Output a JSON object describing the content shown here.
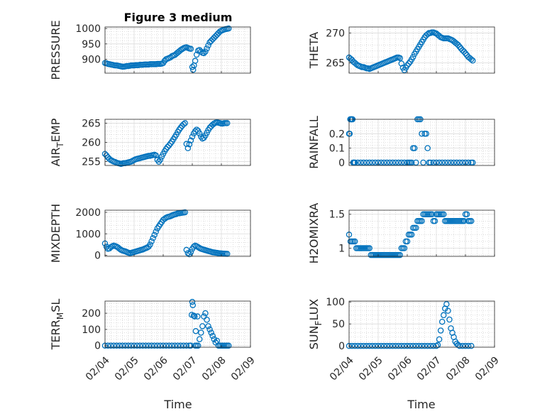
{
  "figure": {
    "title": "Figure 3 medium",
    "xlabel": "Time",
    "x_ticks": [
      "02/04",
      "02/05",
      "02/06",
      "02/07",
      "02/08",
      "02/09"
    ],
    "marker_color": "#0072BD"
  },
  "chart_data": [
    {
      "type": "scatter",
      "name": "pressure",
      "ylabel": "PRESSURE",
      "ylim": [
        855,
        1005
      ],
      "yticks": [
        900,
        950,
        1000
      ],
      "yticklabels": [
        "900",
        "950",
        "1000"
      ],
      "xlim": [
        0,
        5
      ],
      "x": [
        0.0,
        0.05,
        0.1,
        0.15,
        0.2,
        0.25,
        0.3,
        0.35,
        0.4,
        0.45,
        0.5,
        0.55,
        0.6,
        0.65,
        0.7,
        0.75,
        0.8,
        0.85,
        0.9,
        0.95,
        1.0,
        1.05,
        1.1,
        1.15,
        1.2,
        1.25,
        1.3,
        1.35,
        1.4,
        1.45,
        1.5,
        1.55,
        1.6,
        1.65,
        1.7,
        1.75,
        1.8,
        1.85,
        1.9,
        1.95,
        2.0,
        2.05,
        2.1,
        2.15,
        2.2,
        2.25,
        2.3,
        2.35,
        2.4,
        2.45,
        2.5,
        2.55,
        2.6,
        2.65,
        2.7,
        2.75,
        2.8,
        2.85,
        2.9,
        2.95,
        3.0,
        3.03,
        3.06,
        3.1,
        3.15,
        3.2,
        3.25,
        3.3,
        3.35,
        3.4,
        3.45,
        3.5,
        3.55,
        3.6,
        3.65,
        3.7,
        3.75,
        3.8,
        3.85,
        3.9,
        3.95,
        4.0,
        4.05,
        4.1,
        4.15,
        4.2,
        4.25
      ],
      "y": [
        888,
        887,
        885,
        884,
        883,
        882,
        881,
        880,
        880,
        879,
        878,
        877,
        876,
        876,
        877,
        878,
        878,
        879,
        880,
        880,
        880,
        881,
        881,
        881,
        882,
        882,
        882,
        883,
        883,
        883,
        883,
        884,
        884,
        884,
        884,
        884,
        885,
        885,
        885,
        886,
        888,
        895,
        900,
        902,
        904,
        906,
        910,
        912,
        914,
        918,
        922,
        926,
        930,
        933,
        936,
        938,
        939,
        937,
        935,
        934,
        875,
        866,
        880,
        895,
        915,
        928,
        930,
        925,
        921,
        920,
        925,
        935,
        945,
        955,
        960,
        965,
        970,
        975,
        980,
        985,
        990,
        993,
        995,
        997,
        998,
        999,
        1000
      ]
    },
    {
      "type": "scatter",
      "name": "theta",
      "ylabel": "THETA",
      "ylim": [
        263.3,
        271
      ],
      "yticks": [
        265,
        270
      ],
      "yticklabels": [
        "265",
        "270"
      ],
      "xlim": [
        0,
        5
      ],
      "x": [
        0.0,
        0.05,
        0.1,
        0.15,
        0.2,
        0.25,
        0.3,
        0.35,
        0.4,
        0.45,
        0.5,
        0.55,
        0.6,
        0.65,
        0.7,
        0.75,
        0.8,
        0.85,
        0.9,
        0.95,
        1.0,
        1.05,
        1.1,
        1.15,
        1.2,
        1.25,
        1.3,
        1.35,
        1.4,
        1.45,
        1.5,
        1.55,
        1.6,
        1.65,
        1.7,
        1.75,
        1.8,
        1.85,
        1.9,
        1.95,
        2.0,
        2.05,
        2.1,
        2.15,
        2.2,
        2.25,
        2.3,
        2.35,
        2.4,
        2.45,
        2.5,
        2.55,
        2.6,
        2.65,
        2.7,
        2.75,
        2.8,
        2.85,
        2.9,
        2.95,
        3.0,
        3.05,
        3.1,
        3.15,
        3.2,
        3.25,
        3.3,
        3.35,
        3.4,
        3.45,
        3.5,
        3.55,
        3.6,
        3.65,
        3.7,
        3.75,
        3.8,
        3.85,
        3.9,
        3.95,
        4.0,
        4.05,
        4.1,
        4.15,
        4.2,
        4.25
      ],
      "y": [
        265.9,
        265.7,
        265.5,
        265.2,
        265.0,
        264.8,
        264.6,
        264.5,
        264.4,
        264.3,
        264.3,
        264.2,
        264.1,
        264.1,
        264.0,
        264.1,
        264.2,
        264.3,
        264.4,
        264.5,
        264.6,
        264.7,
        264.8,
        264.9,
        265.0,
        265.1,
        265.2,
        265.3,
        265.4,
        265.5,
        265.6,
        265.7,
        265.8,
        265.9,
        265.9,
        265.8,
        264.9,
        264.2,
        263.8,
        264.2,
        264.6,
        264.9,
        265.2,
        265.6,
        266.0,
        266.5,
        266.9,
        267.3,
        267.7,
        268.1,
        268.5,
        268.9,
        269.3,
        269.6,
        269.8,
        270.0,
        270.0,
        270.1,
        270.1,
        270.0,
        269.9,
        269.7,
        269.5,
        269.3,
        269.2,
        269.1,
        269.1,
        269.1,
        269.1,
        269.0,
        268.9,
        268.8,
        268.6,
        268.4,
        268.2,
        268.0,
        267.7,
        267.4,
        267.1,
        266.9,
        266.6,
        266.3,
        266.0,
        265.8,
        265.6,
        265.4
      ]
    },
    {
      "type": "scatter",
      "name": "air_temp",
      "ylabel": "AIR",
      "ylabel_sub": "T",
      "ylabel_rest": "EMP",
      "ylim": [
        254,
        266
      ],
      "yticks": [
        255,
        260,
        265
      ],
      "yticklabels": [
        "255",
        "260",
        "265"
      ],
      "xlim": [
        0,
        5
      ],
      "x": [
        0.0,
        0.05,
        0.1,
        0.15,
        0.2,
        0.25,
        0.3,
        0.35,
        0.4,
        0.45,
        0.5,
        0.55,
        0.6,
        0.65,
        0.7,
        0.75,
        0.8,
        0.85,
        0.9,
        0.95,
        1.0,
        1.05,
        1.1,
        1.15,
        1.2,
        1.25,
        1.3,
        1.35,
        1.4,
        1.45,
        1.5,
        1.55,
        1.6,
        1.65,
        1.7,
        1.75,
        1.8,
        1.85,
        1.9,
        1.95,
        2.0,
        2.05,
        2.1,
        2.15,
        2.2,
        2.25,
        2.3,
        2.35,
        2.4,
        2.45,
        2.5,
        2.55,
        2.6,
        2.65,
        2.7,
        2.75,
        2.8,
        2.85,
        2.9,
        2.95,
        3.0,
        3.05,
        3.1,
        3.15,
        3.2,
        3.25,
        3.3,
        3.35,
        3.4,
        3.45,
        3.5,
        3.55,
        3.6,
        3.65,
        3.7,
        3.75,
        3.8,
        3.85,
        3.9,
        3.95,
        4.0,
        4.05,
        4.1,
        4.15,
        4.2
      ],
      "y": [
        257.0,
        256.6,
        256.1,
        255.7,
        255.4,
        255.2,
        255.0,
        254.9,
        254.7,
        254.6,
        254.5,
        254.4,
        254.5,
        254.6,
        254.6,
        254.7,
        254.8,
        254.9,
        255.0,
        255.2,
        255.4,
        255.6,
        255.7,
        255.8,
        255.9,
        256.0,
        256.1,
        256.2,
        256.3,
        256.4,
        256.5,
        256.5,
        256.6,
        256.7,
        256.8,
        256.6,
        255.5,
        255.0,
        255.5,
        256.3,
        257.0,
        257.7,
        258.3,
        258.8,
        259.2,
        259.7,
        260.2,
        260.8,
        261.4,
        262.0,
        262.7,
        263.3,
        263.8,
        264.3,
        264.7,
        265.0,
        259.6,
        258.5,
        259.5,
        260.5,
        261.5,
        262.3,
        262.9,
        263.3,
        263.0,
        262.3,
        261.5,
        261.0,
        261.2,
        261.8,
        262.5,
        263.2,
        263.8,
        264.2,
        264.6,
        264.9,
        265.1,
        265.2,
        265.1,
        265.0,
        264.9,
        264.9,
        265.0,
        265.0,
        265.0
      ]
    },
    {
      "type": "scatter",
      "name": "rainfall",
      "ylabel": "RAINFALL",
      "ylim": [
        -0.02,
        0.3
      ],
      "yticks": [
        0,
        0.1,
        0.2
      ],
      "yticklabels": [
        "0",
        "0.1",
        "0.2"
      ],
      "xlim": [
        0,
        5
      ],
      "x": [
        0.0,
        0.02,
        0.04,
        0.06,
        0.08,
        0.1,
        0.12,
        0.14,
        0.16,
        0.18,
        0.2,
        0.3,
        0.4,
        0.5,
        0.6,
        0.7,
        0.8,
        0.9,
        1.0,
        1.1,
        1.2,
        1.3,
        1.4,
        1.5,
        1.6,
        1.7,
        1.8,
        1.9,
        2.0,
        2.05,
        2.1,
        2.15,
        2.2,
        2.25,
        2.3,
        2.35,
        2.4,
        2.45,
        2.5,
        2.55,
        2.6,
        2.65,
        2.7,
        2.75,
        2.8,
        2.9,
        3.0,
        3.1,
        3.2,
        3.3,
        3.4,
        3.5,
        3.6,
        3.7,
        3.8,
        3.9,
        4.0,
        4.1,
        4.2,
        4.25
      ],
      "y": [
        0.2,
        0.2,
        0.3,
        0.3,
        0.3,
        0.3,
        0.3,
        0.0,
        0.0,
        0.0,
        0.0,
        0.0,
        0.0,
        0.0,
        0.0,
        0.0,
        0.0,
        0.0,
        0.0,
        0.0,
        0.0,
        0.0,
        0.0,
        0.0,
        0.0,
        0.0,
        0.0,
        0.0,
        0.0,
        0.0,
        0.0,
        0.0,
        0.1,
        0.1,
        0.0,
        0.3,
        0.3,
        0.3,
        0.2,
        0.0,
        0.2,
        0.2,
        0.1,
        0.0,
        0.0,
        0.0,
        0.0,
        0.0,
        0.0,
        0.0,
        0.0,
        0.0,
        0.0,
        0.0,
        0.0,
        0.0,
        0.0,
        0.0,
        0.0,
        0.0
      ]
    },
    {
      "type": "scatter",
      "name": "mixdepth",
      "ylabel": "MIXDEPTH",
      "ylim": [
        -50,
        2100
      ],
      "yticks": [
        0,
        1000,
        2000
      ],
      "yticklabels": [
        "0",
        "1000",
        "2000"
      ],
      "xlim": [
        0,
        5
      ],
      "x": [
        0.0,
        0.05,
        0.1,
        0.15,
        0.2,
        0.25,
        0.3,
        0.35,
        0.4,
        0.45,
        0.5,
        0.55,
        0.6,
        0.65,
        0.7,
        0.75,
        0.8,
        0.85,
        0.9,
        0.95,
        1.0,
        1.05,
        1.1,
        1.15,
        1.2,
        1.25,
        1.3,
        1.35,
        1.4,
        1.45,
        1.5,
        1.55,
        1.6,
        1.65,
        1.7,
        1.75,
        1.8,
        1.85,
        1.9,
        1.95,
        2.0,
        2.05,
        2.1,
        2.15,
        2.2,
        2.25,
        2.3,
        2.35,
        2.4,
        2.45,
        2.5,
        2.55,
        2.6,
        2.65,
        2.7,
        2.75,
        2.8,
        2.85,
        2.9,
        2.95,
        3.0,
        3.05,
        3.1,
        3.15,
        3.2,
        3.25,
        3.3,
        3.35,
        3.4,
        3.45,
        3.5,
        3.55,
        3.6,
        3.65,
        3.7,
        3.75,
        3.8,
        3.85,
        3.9,
        3.95,
        4.0,
        4.05,
        4.1,
        4.15,
        4.2
      ],
      "y": [
        550,
        400,
        300,
        320,
        380,
        420,
        450,
        430,
        400,
        360,
        300,
        250,
        220,
        200,
        180,
        150,
        120,
        100,
        110,
        130,
        150,
        170,
        190,
        210,
        230,
        250,
        270,
        300,
        330,
        360,
        400,
        500,
        650,
        800,
        950,
        1100,
        1250,
        1350,
        1450,
        1550,
        1650,
        1700,
        1750,
        1780,
        1800,
        1820,
        1850,
        1880,
        1900,
        1920,
        1950,
        1960,
        1970,
        1980,
        1990,
        2000,
        250,
        100,
        50,
        150,
        300,
        400,
        450,
        420,
        380,
        340,
        300,
        280,
        260,
        240,
        220,
        200,
        180,
        160,
        140,
        130,
        120,
        110,
        100,
        90,
        85,
        80,
        75,
        70,
        65
      ]
    },
    {
      "type": "scatter",
      "name": "h2omixra",
      "ylabel": "H2OMIXRA",
      "ylim": [
        0.88,
        1.56
      ],
      "yticks": [
        1,
        1.5
      ],
      "yticklabels": [
        "1",
        "1.5"
      ],
      "xlim": [
        0,
        5
      ],
      "x": [
        0.0,
        0.05,
        0.1,
        0.15,
        0.2,
        0.25,
        0.3,
        0.35,
        0.4,
        0.45,
        0.5,
        0.55,
        0.6,
        0.65,
        0.7,
        0.75,
        0.8,
        0.85,
        0.9,
        0.95,
        1.0,
        1.05,
        1.1,
        1.15,
        1.2,
        1.25,
        1.3,
        1.35,
        1.4,
        1.45,
        1.5,
        1.55,
        1.6,
        1.65,
        1.7,
        1.75,
        1.8,
        1.85,
        1.9,
        1.95,
        2.0,
        2.05,
        2.1,
        2.15,
        2.2,
        2.25,
        2.3,
        2.35,
        2.4,
        2.45,
        2.5,
        2.55,
        2.6,
        2.65,
        2.7,
        2.75,
        2.8,
        2.85,
        2.9,
        2.95,
        3.0,
        3.05,
        3.1,
        3.15,
        3.2,
        3.25,
        3.3,
        3.35,
        3.4,
        3.45,
        3.5,
        3.55,
        3.6,
        3.65,
        3.7,
        3.75,
        3.8,
        3.85,
        3.9,
        3.95,
        4.0,
        4.05,
        4.1,
        4.15,
        4.2
      ],
      "y": [
        1.2,
        1.1,
        1.1,
        1.1,
        1.1,
        1.0,
        1.0,
        1.0,
        1.0,
        1.0,
        1.0,
        1.0,
        1.0,
        1.0,
        1.0,
        0.9,
        0.9,
        0.9,
        0.9,
        0.9,
        0.9,
        0.9,
        0.9,
        0.9,
        0.9,
        0.9,
        0.9,
        0.9,
        0.9,
        0.9,
        0.9,
        0.9,
        0.9,
        0.9,
        0.9,
        0.9,
        1.0,
        1.0,
        1.0,
        1.1,
        1.1,
        1.2,
        1.2,
        1.2,
        1.3,
        1.3,
        1.3,
        1.4,
        1.4,
        1.4,
        1.4,
        1.5,
        1.5,
        1.5,
        1.5,
        1.5,
        1.5,
        1.5,
        1.4,
        1.4,
        1.5,
        1.5,
        1.5,
        1.5,
        1.5,
        1.5,
        1.4,
        1.4,
        1.4,
        1.4,
        1.4,
        1.4,
        1.4,
        1.4,
        1.4,
        1.4,
        1.4,
        1.4,
        1.4,
        1.4,
        1.5,
        1.5,
        1.4,
        1.4,
        1.4
      ]
    },
    {
      "type": "scatter",
      "name": "terr_msl",
      "ylabel": "TERR",
      "ylabel_sub": "M",
      "ylabel_rest": "SL",
      "ylim": [
        -10,
        275
      ],
      "yticks": [
        0,
        100,
        200
      ],
      "yticklabels": [
        "0",
        "100",
        "200"
      ],
      "xlim": [
        0,
        5
      ],
      "x": [
        0.0,
        0.1,
        0.2,
        0.3,
        0.4,
        0.5,
        0.6,
        0.7,
        0.8,
        0.9,
        1.0,
        1.1,
        1.2,
        1.3,
        1.4,
        1.5,
        1.6,
        1.7,
        1.8,
        1.9,
        2.0,
        2.1,
        2.2,
        2.3,
        2.4,
        2.5,
        2.6,
        2.7,
        2.8,
        2.9,
        2.95,
        2.98,
        3.0,
        3.02,
        3.05,
        3.08,
        3.1,
        3.12,
        3.15,
        3.18,
        3.2,
        3.25,
        3.3,
        3.35,
        3.4,
        3.45,
        3.5,
        3.55,
        3.6,
        3.65,
        3.7,
        3.75,
        3.8,
        3.85,
        3.9,
        3.95,
        4.0,
        4.05,
        4.1,
        4.15,
        4.2,
        4.25
      ],
      "y": [
        0,
        0,
        0,
        0,
        0,
        0,
        0,
        0,
        0,
        0,
        0,
        0,
        0,
        0,
        0,
        0,
        0,
        0,
        0,
        0,
        0,
        0,
        0,
        0,
        0,
        0,
        0,
        0,
        0,
        0,
        0,
        190,
        270,
        250,
        185,
        180,
        0,
        90,
        0,
        180,
        0,
        40,
        80,
        120,
        180,
        200,
        160,
        120,
        100,
        80,
        60,
        40,
        20,
        30,
        0,
        0,
        0,
        0,
        0,
        0,
        0,
        0
      ]
    },
    {
      "type": "scatter",
      "name": "sun_flux",
      "ylabel": "SUN",
      "ylabel_sub": "F",
      "ylabel_rest": "LUX",
      "ylim": [
        -3,
        102
      ],
      "yticks": [
        0,
        50,
        100
      ],
      "yticklabels": [
        "0",
        "50",
        "100"
      ],
      "xlim": [
        0,
        5
      ],
      "x": [
        0.0,
        0.1,
        0.2,
        0.3,
        0.4,
        0.5,
        0.6,
        0.7,
        0.8,
        0.9,
        1.0,
        1.1,
        1.2,
        1.3,
        1.4,
        1.5,
        1.6,
        1.7,
        1.8,
        1.9,
        2.0,
        2.1,
        2.2,
        2.3,
        2.4,
        2.5,
        2.6,
        2.7,
        2.8,
        2.9,
        3.0,
        3.05,
        3.1,
        3.15,
        3.2,
        3.25,
        3.3,
        3.35,
        3.4,
        3.45,
        3.5,
        3.55,
        3.6,
        3.65,
        3.7,
        3.75,
        3.8,
        3.9,
        4.0,
        4.1,
        4.2
      ],
      "y": [
        0,
        0,
        0,
        0,
        0,
        0,
        0,
        0,
        0,
        0,
        0,
        0,
        0,
        0,
        0,
        0,
        0,
        0,
        0,
        0,
        0,
        0,
        0,
        0,
        0,
        0,
        0,
        0,
        0,
        0,
        0,
        2,
        15,
        35,
        55,
        70,
        85,
        95,
        80,
        60,
        40,
        30,
        20,
        10,
        5,
        2,
        0,
        0,
        0,
        0,
        0
      ]
    }
  ]
}
